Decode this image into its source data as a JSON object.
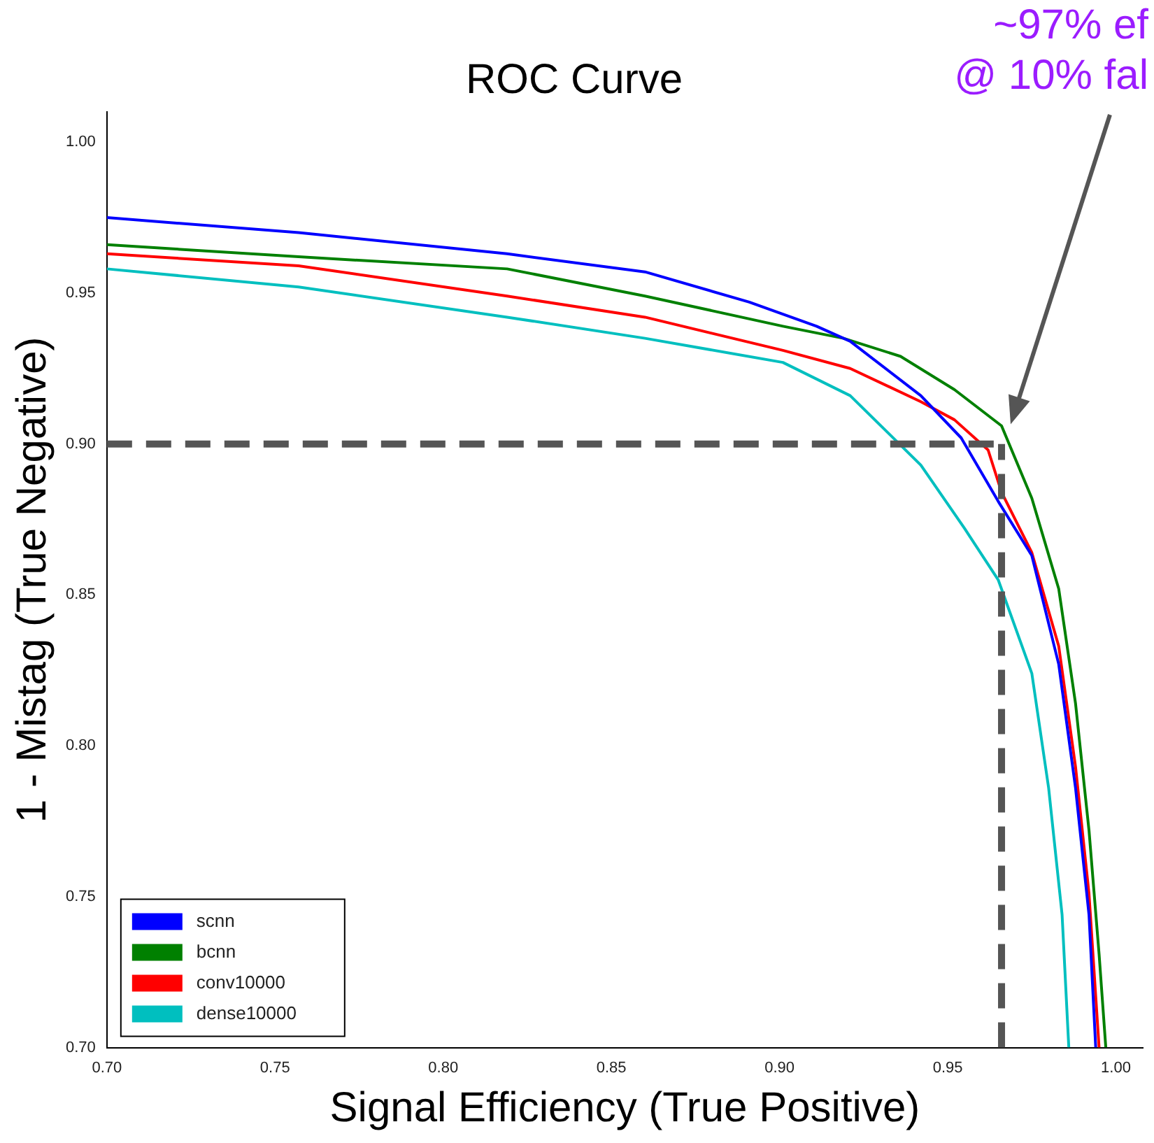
{
  "chart_data": {
    "type": "line",
    "title": "ROC Curve",
    "xlabel": "Signal Efficiency (True Positive)",
    "ylabel": "1 - Mistag (True Negative)",
    "xlim": [
      0.7,
      1.008
    ],
    "xticks": [
      {
        "value": 0.7,
        "label": "0.70"
      },
      {
        "value": 0.75,
        "label": "0.75"
      },
      {
        "value": 0.8,
        "label": "0.80"
      },
      {
        "value": 0.85,
        "label": "0.85"
      },
      {
        "value": 0.9,
        "label": "0.90"
      },
      {
        "value": 0.95,
        "label": "0.95"
      },
      {
        "value": 1.0,
        "label": "1.00"
      }
    ],
    "ylim": [
      0.7,
      1.01
    ],
    "yticks": [
      {
        "value": 0.7,
        "label": "0.70"
      },
      {
        "value": 0.75,
        "label": "0.75"
      },
      {
        "value": 0.8,
        "label": "0.80"
      },
      {
        "value": 0.85,
        "label": "0.85"
      },
      {
        "value": 0.9,
        "label": "0.90"
      },
      {
        "value": 0.95,
        "label": "0.95"
      },
      {
        "value": 1.0,
        "label": "1.00"
      }
    ],
    "grid": false,
    "legend": "bottom left",
    "marker": "none",
    "line_style": "solid",
    "series": [
      {
        "name": "scnn",
        "color": "#0000ff",
        "x": [
          0.7,
          0.757,
          0.819,
          0.86,
          0.891,
          0.911,
          0.921,
          0.942,
          0.954,
          0.965,
          0.975,
          0.983,
          0.988,
          0.992,
          0.994
        ],
        "values": [
          0.975,
          0.97,
          0.963,
          0.957,
          0.947,
          0.939,
          0.934,
          0.916,
          0.902,
          0.881,
          0.863,
          0.827,
          0.786,
          0.744,
          0.7
        ]
      },
      {
        "name": "bcnn",
        "color": "#008000",
        "x": [
          0.7,
          0.757,
          0.819,
          0.86,
          0.901,
          0.919,
          0.936,
          0.952,
          0.966,
          0.975,
          0.983,
          0.988,
          0.992,
          0.995,
          0.997
        ],
        "values": [
          0.966,
          0.962,
          0.958,
          0.949,
          0.939,
          0.935,
          0.929,
          0.918,
          0.906,
          0.882,
          0.852,
          0.814,
          0.772,
          0.731,
          0.7
        ]
      },
      {
        "name": "conv10000",
        "color": "#ff0000",
        "x": [
          0.7,
          0.757,
          0.819,
          0.86,
          0.901,
          0.921,
          0.942,
          0.952,
          0.962,
          0.966,
          0.975,
          0.983,
          0.988,
          0.992,
          0.995
        ],
        "values": [
          0.963,
          0.959,
          0.949,
          0.942,
          0.931,
          0.925,
          0.914,
          0.908,
          0.898,
          0.884,
          0.864,
          0.833,
          0.793,
          0.751,
          0.7
        ]
      },
      {
        "name": "dense10000",
        "color": "#00bfbf",
        "x": [
          0.7,
          0.757,
          0.819,
          0.86,
          0.901,
          0.921,
          0.942,
          0.955,
          0.965,
          0.975,
          0.98,
          0.984,
          0.986
        ],
        "values": [
          0.958,
          0.952,
          0.942,
          0.935,
          0.927,
          0.916,
          0.893,
          0.872,
          0.855,
          0.824,
          0.786,
          0.744,
          0.7
        ]
      }
    ],
    "ref_lines": [
      {
        "axis": "y",
        "value": 0.9,
        "color": "#555555",
        "line_style": "dashed"
      },
      {
        "axis": "x",
        "value": 0.966,
        "color": "#555555",
        "line_style": "dashed"
      }
    ],
    "annotations": [
      "~97% ef\n@ 10% fal"
    ]
  }
}
